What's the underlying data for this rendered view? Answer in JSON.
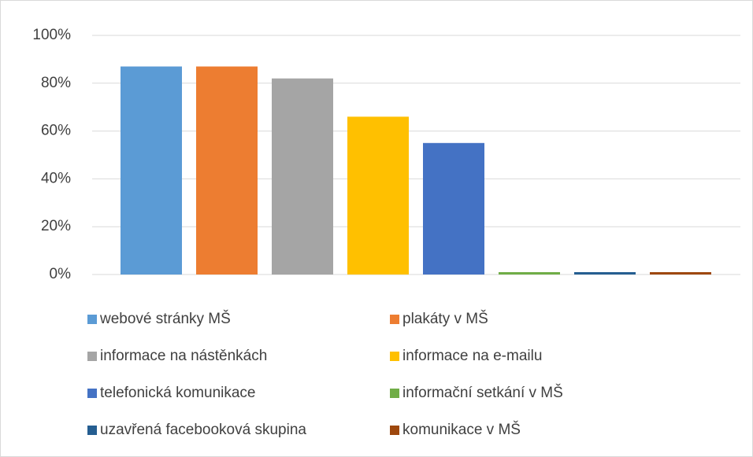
{
  "chart_data": {
    "type": "bar",
    "series": [
      {
        "name": "webové stránky MŠ",
        "color": "#5b9bd5",
        "values": [
          87
        ]
      },
      {
        "name": "plakáty v MŠ",
        "color": "#ed7d31",
        "values": [
          87
        ]
      },
      {
        "name": "informace na nástěnkách",
        "color": "#a5a5a5",
        "values": [
          82
        ]
      },
      {
        "name": "informace na e-mailu",
        "color": "#ffc000",
        "values": [
          66
        ]
      },
      {
        "name": "telefonická komunikace",
        "color": "#4472c4",
        "values": [
          55
        ]
      },
      {
        "name": "informační setkání v MŠ",
        "color": "#70ad47",
        "values": [
          1
        ]
      },
      {
        "name": "uzavřená facebooková skupina",
        "color": "#255e91",
        "values": [
          1
        ]
      },
      {
        "name": "komunikace v MŠ",
        "color": "#9e480e",
        "values": [
          1
        ]
      }
    ],
    "ylim": [
      0,
      100
    ],
    "yticks": [
      {
        "value": 0,
        "label": "0%"
      },
      {
        "value": 20,
        "label": "20%"
      },
      {
        "value": 40,
        "label": "40%"
      },
      {
        "value": 60,
        "label": "60%"
      },
      {
        "value": 80,
        "label": "80%"
      },
      {
        "value": 100,
        "label": "100%"
      }
    ],
    "grid": true,
    "legend": "bottom"
  }
}
